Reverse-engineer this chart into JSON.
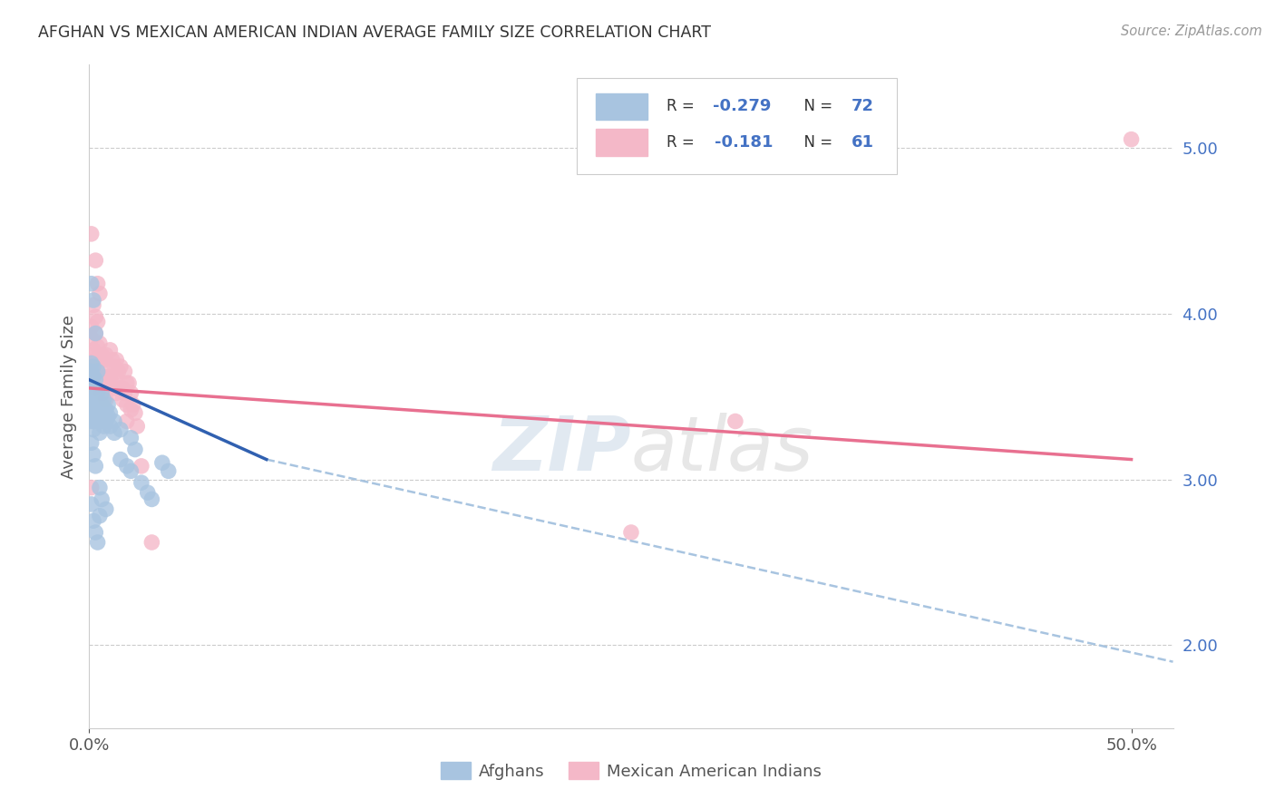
{
  "title": "AFGHAN VS MEXICAN AMERICAN INDIAN AVERAGE FAMILY SIZE CORRELATION CHART",
  "source": "Source: ZipAtlas.com",
  "ylabel": "Average Family Size",
  "right_yticks": [
    2.0,
    3.0,
    4.0,
    5.0
  ],
  "watermark": "ZIPatlas",
  "afghan_color": "#a8c4e0",
  "mexican_color": "#f4b8c8",
  "afghan_line_color": "#3060b0",
  "mexican_line_color": "#e87090",
  "dashed_line_color": "#a8c4e0",
  "blue_scatter": [
    [
      0.001,
      3.6
    ],
    [
      0.001,
      3.55
    ],
    [
      0.001,
      3.5
    ],
    [
      0.001,
      3.65
    ],
    [
      0.001,
      3.7
    ],
    [
      0.001,
      3.48
    ],
    [
      0.001,
      3.58
    ],
    [
      0.001,
      3.45
    ],
    [
      0.001,
      3.62
    ],
    [
      0.001,
      3.52
    ],
    [
      0.001,
      3.42
    ],
    [
      0.001,
      3.38
    ],
    [
      0.001,
      3.35
    ],
    [
      0.002,
      3.68
    ],
    [
      0.002,
      3.55
    ],
    [
      0.002,
      3.48
    ],
    [
      0.002,
      3.4
    ],
    [
      0.002,
      3.35
    ],
    [
      0.002,
      3.3
    ],
    [
      0.002,
      3.62
    ],
    [
      0.002,
      3.45
    ],
    [
      0.003,
      3.55
    ],
    [
      0.003,
      3.6
    ],
    [
      0.003,
      3.5
    ],
    [
      0.003,
      3.42
    ],
    [
      0.003,
      3.38
    ],
    [
      0.004,
      3.65
    ],
    [
      0.004,
      3.52
    ],
    [
      0.004,
      3.45
    ],
    [
      0.004,
      3.38
    ],
    [
      0.004,
      3.48
    ],
    [
      0.005,
      3.42
    ],
    [
      0.005,
      3.35
    ],
    [
      0.005,
      3.28
    ],
    [
      0.006,
      3.52
    ],
    [
      0.006,
      3.45
    ],
    [
      0.006,
      3.38
    ],
    [
      0.007,
      3.48
    ],
    [
      0.007,
      3.4
    ],
    [
      0.007,
      3.32
    ],
    [
      0.008,
      3.42
    ],
    [
      0.008,
      3.35
    ],
    [
      0.009,
      3.45
    ],
    [
      0.009,
      3.38
    ],
    [
      0.01,
      3.4
    ],
    [
      0.01,
      3.32
    ],
    [
      0.012,
      3.35
    ],
    [
      0.012,
      3.28
    ],
    [
      0.015,
      3.3
    ],
    [
      0.02,
      3.25
    ],
    [
      0.001,
      4.18
    ],
    [
      0.002,
      4.08
    ],
    [
      0.003,
      3.88
    ],
    [
      0.001,
      2.85
    ],
    [
      0.002,
      2.75
    ],
    [
      0.003,
      2.68
    ],
    [
      0.004,
      2.62
    ],
    [
      0.005,
      2.78
    ],
    [
      0.001,
      3.22
    ],
    [
      0.002,
      3.15
    ],
    [
      0.003,
      3.08
    ],
    [
      0.005,
      2.95
    ],
    [
      0.015,
      3.12
    ],
    [
      0.018,
      3.08
    ],
    [
      0.02,
      3.05
    ],
    [
      0.025,
      2.98
    ],
    [
      0.028,
      2.92
    ],
    [
      0.03,
      2.88
    ],
    [
      0.022,
      3.18
    ],
    [
      0.035,
      3.1
    ],
    [
      0.038,
      3.05
    ],
    [
      0.006,
      2.88
    ],
    [
      0.008,
      2.82
    ]
  ],
  "pink_scatter": [
    [
      0.001,
      3.85
    ],
    [
      0.001,
      3.75
    ],
    [
      0.001,
      3.62
    ],
    [
      0.001,
      3.92
    ],
    [
      0.002,
      3.78
    ],
    [
      0.002,
      3.65
    ],
    [
      0.002,
      3.55
    ],
    [
      0.003,
      4.32
    ],
    [
      0.003,
      3.88
    ],
    [
      0.003,
      3.72
    ],
    [
      0.004,
      3.95
    ],
    [
      0.004,
      3.8
    ],
    [
      0.004,
      3.68
    ],
    [
      0.005,
      3.82
    ],
    [
      0.005,
      3.72
    ],
    [
      0.005,
      3.58
    ],
    [
      0.006,
      3.75
    ],
    [
      0.006,
      3.62
    ],
    [
      0.006,
      3.52
    ],
    [
      0.007,
      3.72
    ],
    [
      0.007,
      3.62
    ],
    [
      0.008,
      3.75
    ],
    [
      0.008,
      3.6
    ],
    [
      0.008,
      3.48
    ],
    [
      0.009,
      3.68
    ],
    [
      0.009,
      3.55
    ],
    [
      0.01,
      3.78
    ],
    [
      0.01,
      3.62
    ],
    [
      0.011,
      3.72
    ],
    [
      0.011,
      3.58
    ],
    [
      0.012,
      3.68
    ],
    [
      0.012,
      3.55
    ],
    [
      0.013,
      3.72
    ],
    [
      0.013,
      3.62
    ],
    [
      0.013,
      3.52
    ],
    [
      0.014,
      3.65
    ],
    [
      0.015,
      3.68
    ],
    [
      0.015,
      3.55
    ],
    [
      0.016,
      3.55
    ],
    [
      0.016,
      3.48
    ],
    [
      0.017,
      3.65
    ],
    [
      0.017,
      3.52
    ],
    [
      0.018,
      3.58
    ],
    [
      0.018,
      3.45
    ],
    [
      0.018,
      3.35
    ],
    [
      0.019,
      3.58
    ],
    [
      0.02,
      3.52
    ],
    [
      0.02,
      3.42
    ],
    [
      0.021,
      3.45
    ],
    [
      0.022,
      3.4
    ],
    [
      0.023,
      3.32
    ],
    [
      0.001,
      4.48
    ],
    [
      0.002,
      4.05
    ],
    [
      0.003,
      3.98
    ],
    [
      0.004,
      4.18
    ],
    [
      0.005,
      4.12
    ],
    [
      0.001,
      2.95
    ],
    [
      0.025,
      3.08
    ],
    [
      0.03,
      2.62
    ],
    [
      0.31,
      3.35
    ],
    [
      0.26,
      2.68
    ],
    [
      0.5,
      5.05
    ]
  ],
  "xlim": [
    0.0,
    0.52
  ],
  "ylim": [
    1.5,
    5.5
  ],
  "blue_line_x": [
    0.0,
    0.085
  ],
  "blue_line_y": [
    3.6,
    3.12
  ],
  "pink_line_x": [
    0.0,
    0.5
  ],
  "pink_line_y": [
    3.55,
    3.12
  ],
  "dashed_line_x": [
    0.085,
    0.52
  ],
  "dashed_line_y": [
    3.12,
    1.9
  ]
}
